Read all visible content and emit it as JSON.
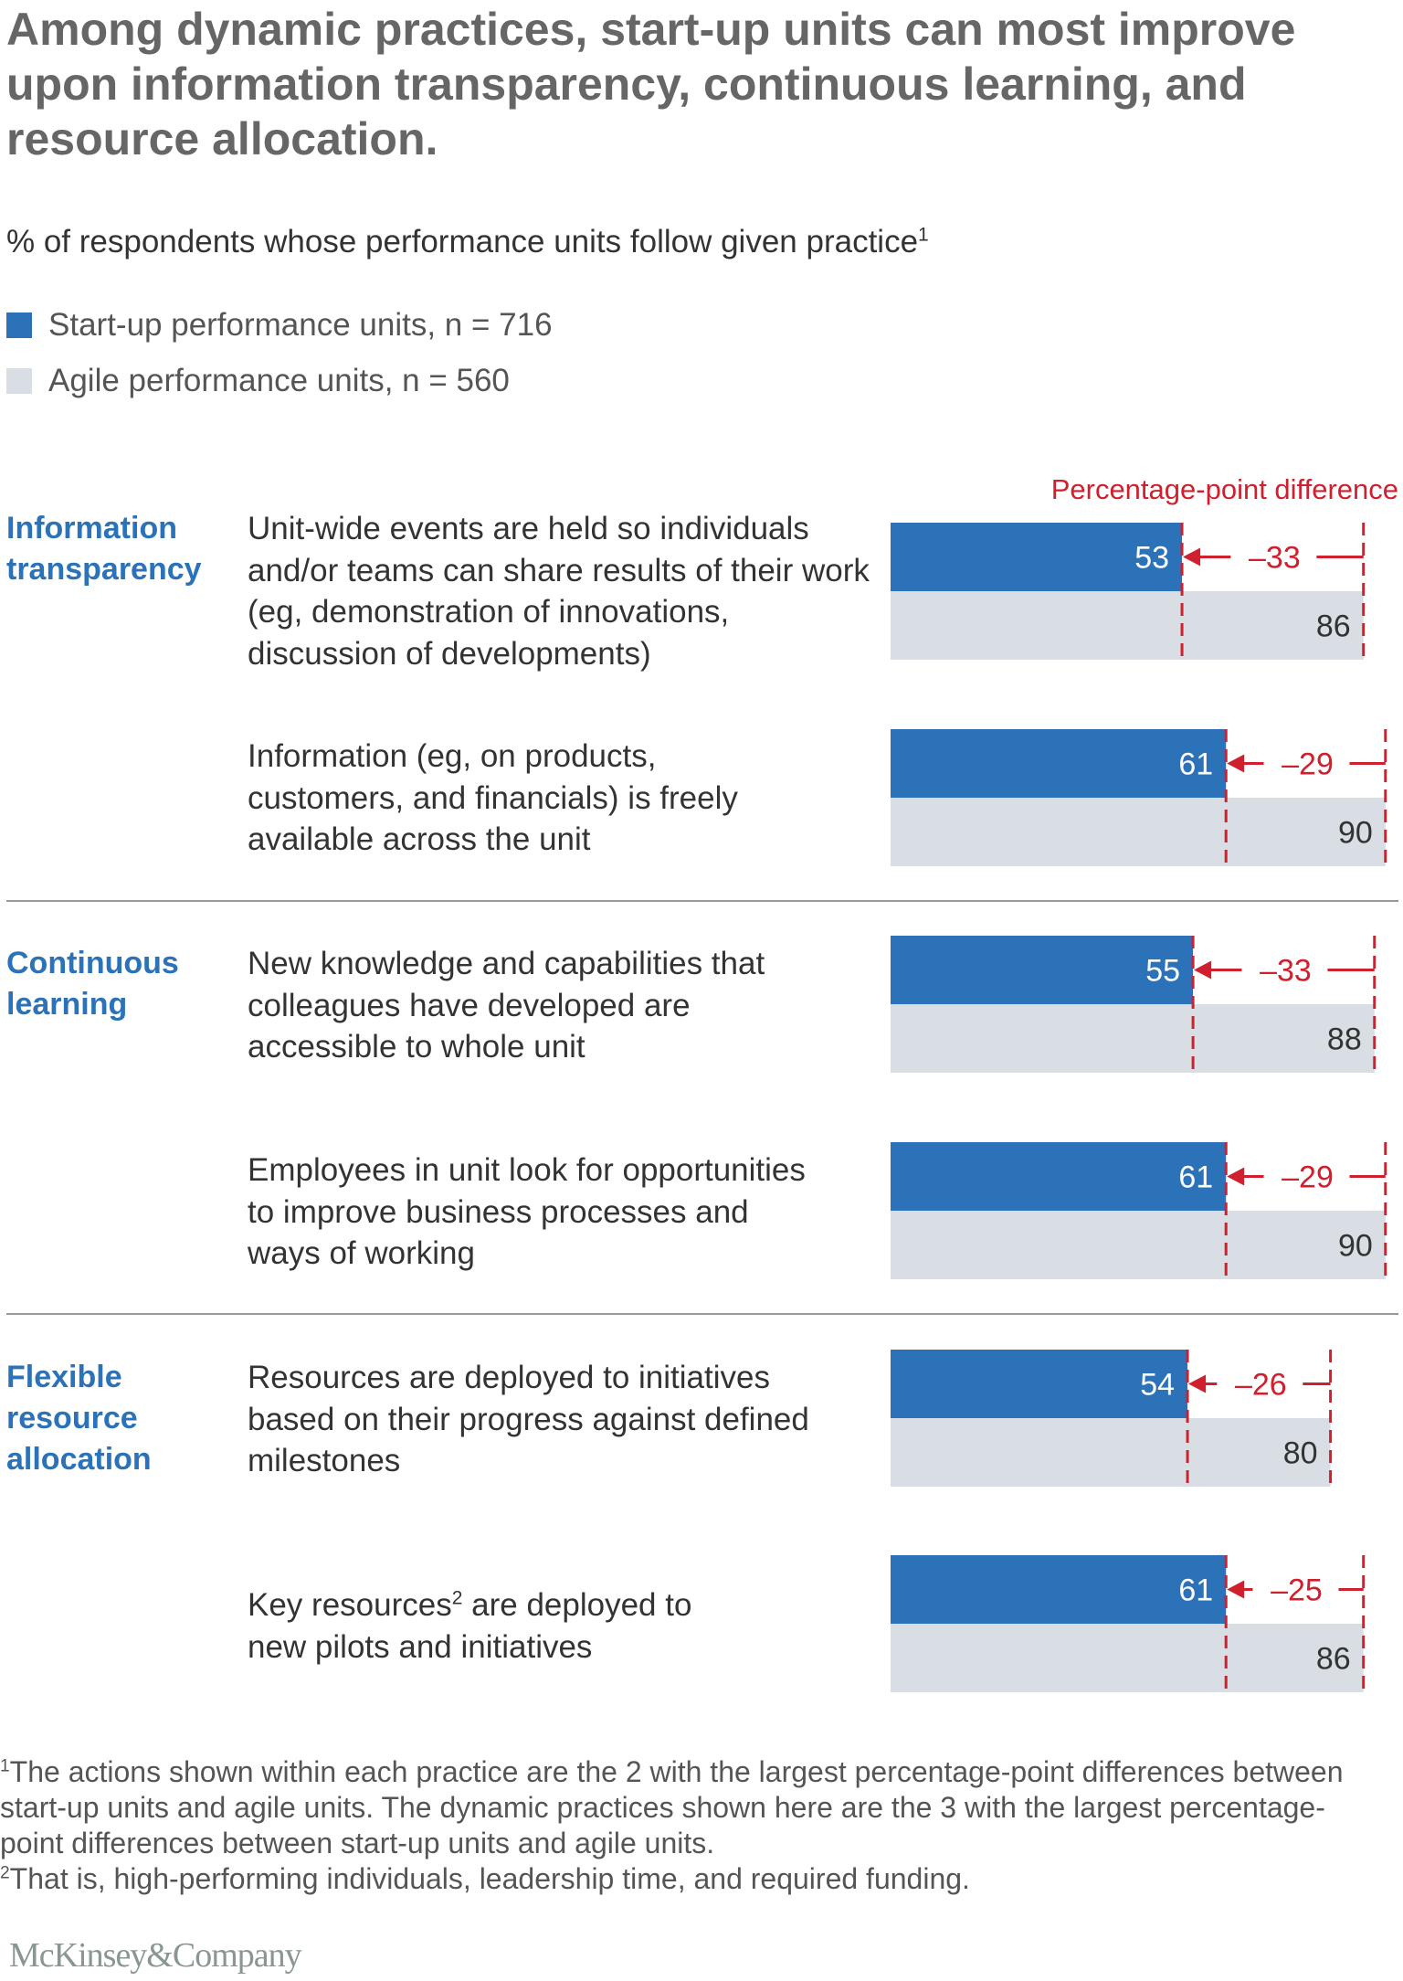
{
  "title": "Among dynamic practices, start-up units can most improve upon information transparency, continuous learning, and resource allocation.",
  "subtitle": "% of respondents whose performance units follow given practice",
  "subtitle_footnote": "1",
  "colors": {
    "startup": "#2B72B8",
    "agile": "#D8DEE3",
    "difference": "#D0202E"
  },
  "chart_data": {
    "type": "bar",
    "orientation": "horizontal",
    "title": "",
    "xlim": [
      0,
      100
    ],
    "grid": false,
    "legend_position": "top-left",
    "difference_label": "Percentage-point difference",
    "series": [
      {
        "name": "Start-up performance units, n = 716",
        "values": [
          53,
          61,
          55,
          61,
          54,
          61
        ]
      },
      {
        "name": "Agile performance units, n = 560",
        "values": [
          86,
          90,
          88,
          90,
          80,
          86
        ]
      }
    ],
    "differences": [
      "–33",
      "–29",
      "–33",
      "–29",
      "–26",
      "–25"
    ],
    "groups": [
      {
        "label": "Information transparency",
        "items": [
          {
            "text": "Unit-wide events are held so individuals and/or teams can share results of their work (eg, demonstration of innovations, discussion of developments)"
          },
          {
            "text": "Information (eg, on products, customers, and financials) is freely available across the unit"
          }
        ]
      },
      {
        "label": "Continuous learning",
        "items": [
          {
            "text": "New knowledge and capabilities that colleagues have developed are accessible to whole unit"
          },
          {
            "text": "Employees in unit look for opportunities to improve business processes and ways of working"
          }
        ]
      },
      {
        "label": "Flexible resource allocation",
        "items": [
          {
            "text": "Resources are deployed to initiatives based on their progress against defined milestones"
          },
          {
            "text_before": "Key resources",
            "footnote": "2",
            "text_after": " are deployed to new pilots and initiatives"
          }
        ]
      }
    ]
  },
  "footnotes": [
    {
      "mark": "1",
      "text": "The actions shown within each practice are the 2 with the largest percentage-point differences between start-up units and agile units. The dynamic practices shown here are the 3 with the largest percentage-point differences between start-up units and agile units."
    },
    {
      "mark": "2",
      "text": "That is, high-performing individuals, leadership time, and required funding."
    }
  ],
  "logo": "McKinsey&Company"
}
